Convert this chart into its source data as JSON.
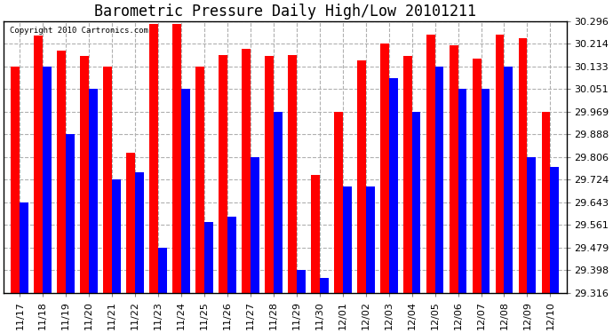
{
  "title": "Barometric Pressure Daily High/Low 20101211",
  "copyright": "Copyright 2010 Cartronics.com",
  "categories": [
    "11/17",
    "11/18",
    "11/19",
    "11/20",
    "11/21",
    "11/22",
    "11/23",
    "11/24",
    "11/25",
    "11/26",
    "11/27",
    "11/28",
    "11/29",
    "11/30",
    "12/01",
    "12/02",
    "12/03",
    "12/04",
    "12/05",
    "12/06",
    "12/07",
    "12/08",
    "12/09",
    "12/10"
  ],
  "highs": [
    30.133,
    30.245,
    30.19,
    30.17,
    30.133,
    29.82,
    30.285,
    30.285,
    30.133,
    30.175,
    30.195,
    30.17,
    30.175,
    29.74,
    29.969,
    30.155,
    30.214,
    30.17,
    30.248,
    30.21,
    30.16,
    30.248,
    30.235,
    29.969
  ],
  "lows": [
    29.643,
    30.133,
    29.888,
    30.051,
    29.724,
    29.75,
    29.48,
    30.051,
    29.57,
    29.59,
    29.806,
    29.969,
    29.398,
    29.37,
    29.698,
    29.698,
    30.09,
    29.969,
    30.133,
    30.051,
    30.051,
    30.133,
    29.806,
    29.77
  ],
  "high_color": "#ff0000",
  "low_color": "#0000ff",
  "background_color": "#ffffff",
  "grid_color": "#b0b0b0",
  "yticks": [
    29.316,
    29.398,
    29.479,
    29.561,
    29.643,
    29.724,
    29.806,
    29.888,
    29.969,
    30.051,
    30.133,
    30.214,
    30.296
  ],
  "ymin": 29.316,
  "ymax": 30.296,
  "bar_width": 0.38,
  "title_fontsize": 12,
  "tick_fontsize": 8
}
